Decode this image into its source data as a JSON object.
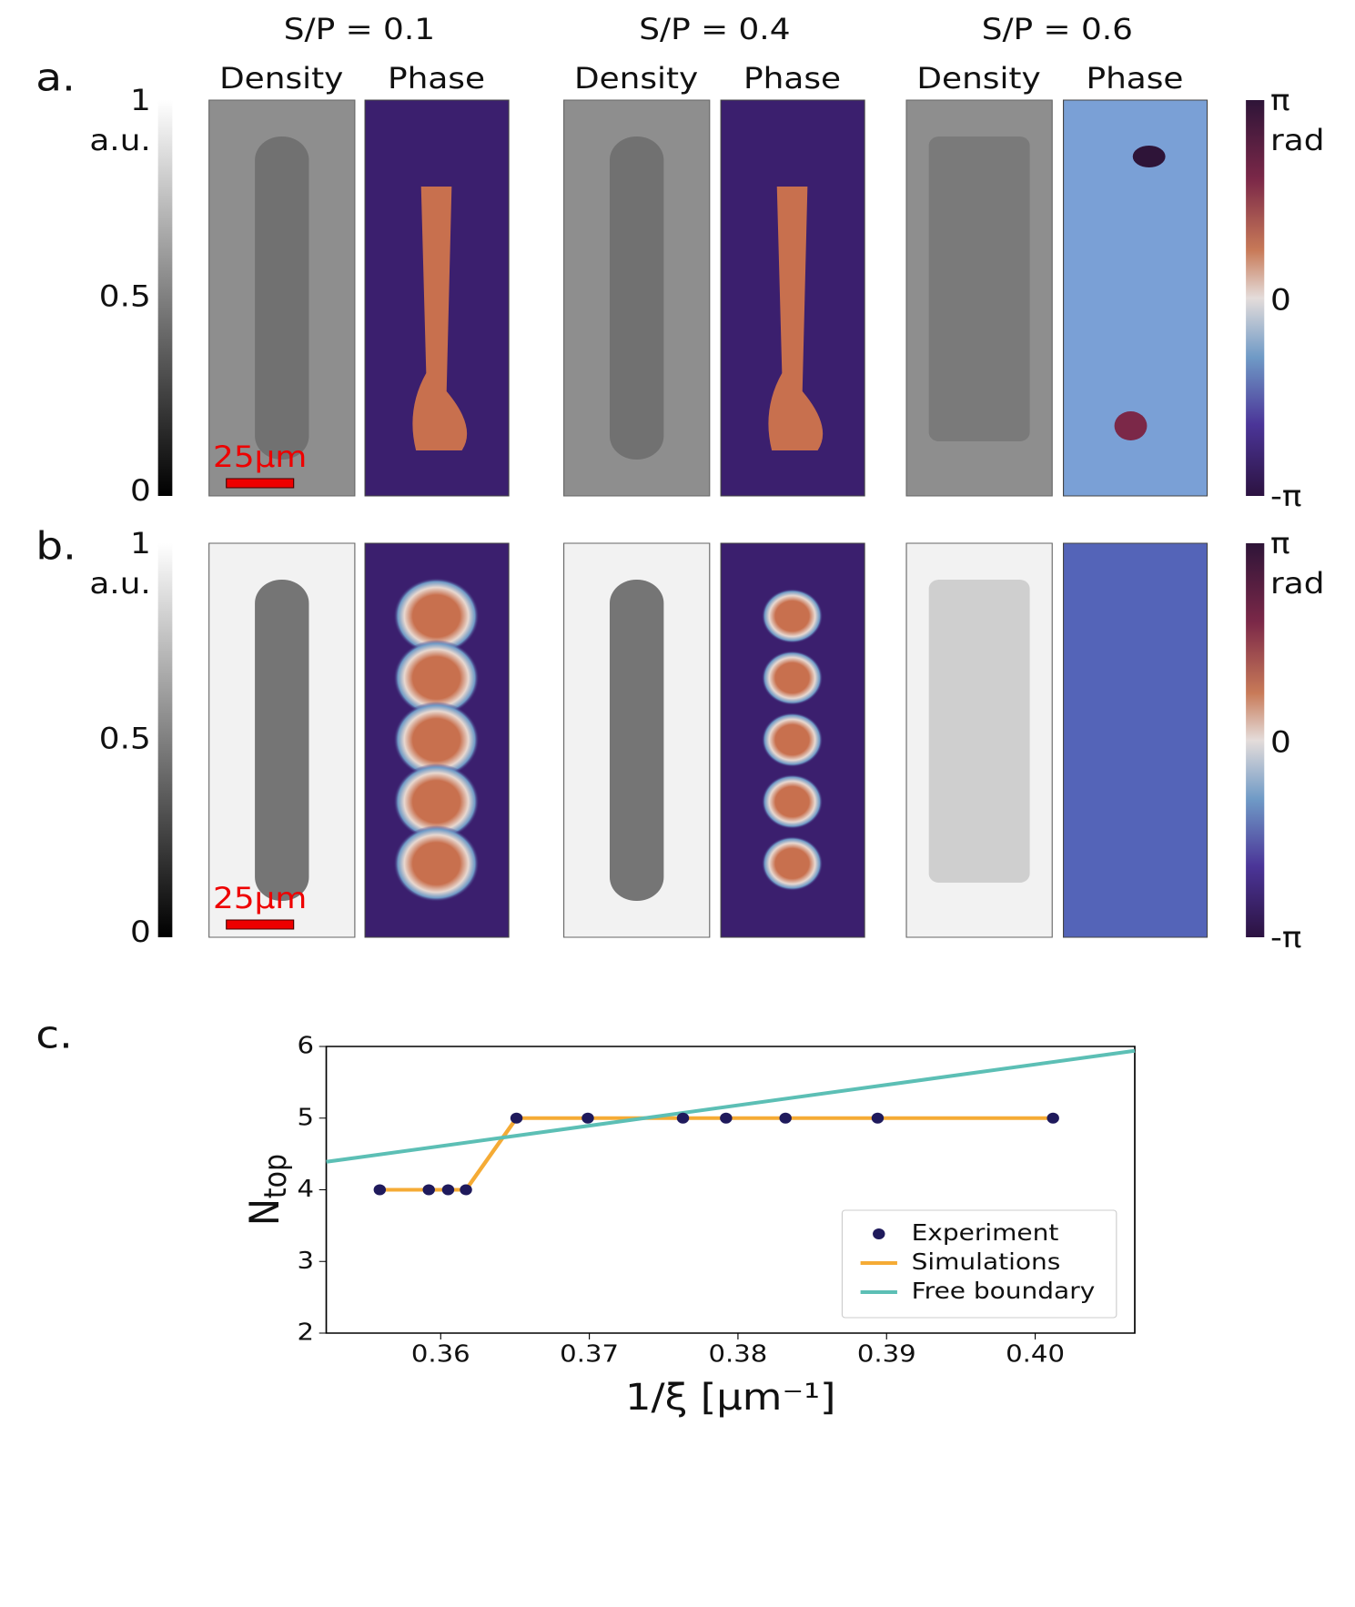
{
  "panel_labels": [
    "a.",
    "b.",
    "c."
  ],
  "columns": [
    {
      "title": "S/P = 0.1",
      "density": "Density",
      "phase": "Phase"
    },
    {
      "title": "S/P = 0.4",
      "density": "Density",
      "phase": "Phase"
    },
    {
      "title": "S/P = 0.6",
      "density": "Density",
      "phase": "Phase"
    }
  ],
  "density_colorbar": {
    "top": "1",
    "unit": "a.u.",
    "middle": "0.5",
    "bottom": "0"
  },
  "phase_colorbar": {
    "top": "π",
    "unit": "rad",
    "middle": "0",
    "bottom": "-π"
  },
  "scale_bar": "25μm",
  "chart_data": {
    "type": "line",
    "xlabel": "1/ξ [μm⁻¹]",
    "ylabel": "N",
    "ylabel_sub": "top",
    "xlim": [
      0.3523,
      0.4067
    ],
    "ylim": [
      2,
      6
    ],
    "xticks": [
      0.36,
      0.37,
      0.38,
      0.39,
      {
        "value": 0.4,
        "label": "0.40"
      }
    ],
    "yticks": [
      2,
      3,
      4,
      5,
      6
    ],
    "legend": "lower right",
    "series": [
      {
        "name": "Experiment",
        "type": "scatter",
        "color": "#1f1a5c",
        "x": [
          0.3559,
          0.3592,
          0.3605,
          0.3617,
          0.3651,
          0.3699,
          0.3763,
          0.3792,
          0.3832,
          0.3894,
          0.4012
        ],
        "values": [
          4,
          4,
          4,
          4,
          5,
          5,
          5,
          5,
          5,
          5,
          5
        ]
      },
      {
        "name": "Simulations",
        "type": "line",
        "color": "#f5ab35",
        "x": [
          0.3559,
          0.3592,
          0.3605,
          0.3617,
          0.3651,
          0.3699,
          0.3763,
          0.3792,
          0.3832,
          0.3894,
          0.4012
        ],
        "values": [
          4,
          4,
          4,
          4,
          5,
          5,
          5,
          5,
          5,
          5,
          5
        ]
      },
      {
        "name": "Free boundary",
        "type": "line",
        "color": "#5cbfb5",
        "x": [
          0.3523,
          0.4067
        ],
        "values": [
          4.39,
          5.94
        ]
      }
    ]
  }
}
